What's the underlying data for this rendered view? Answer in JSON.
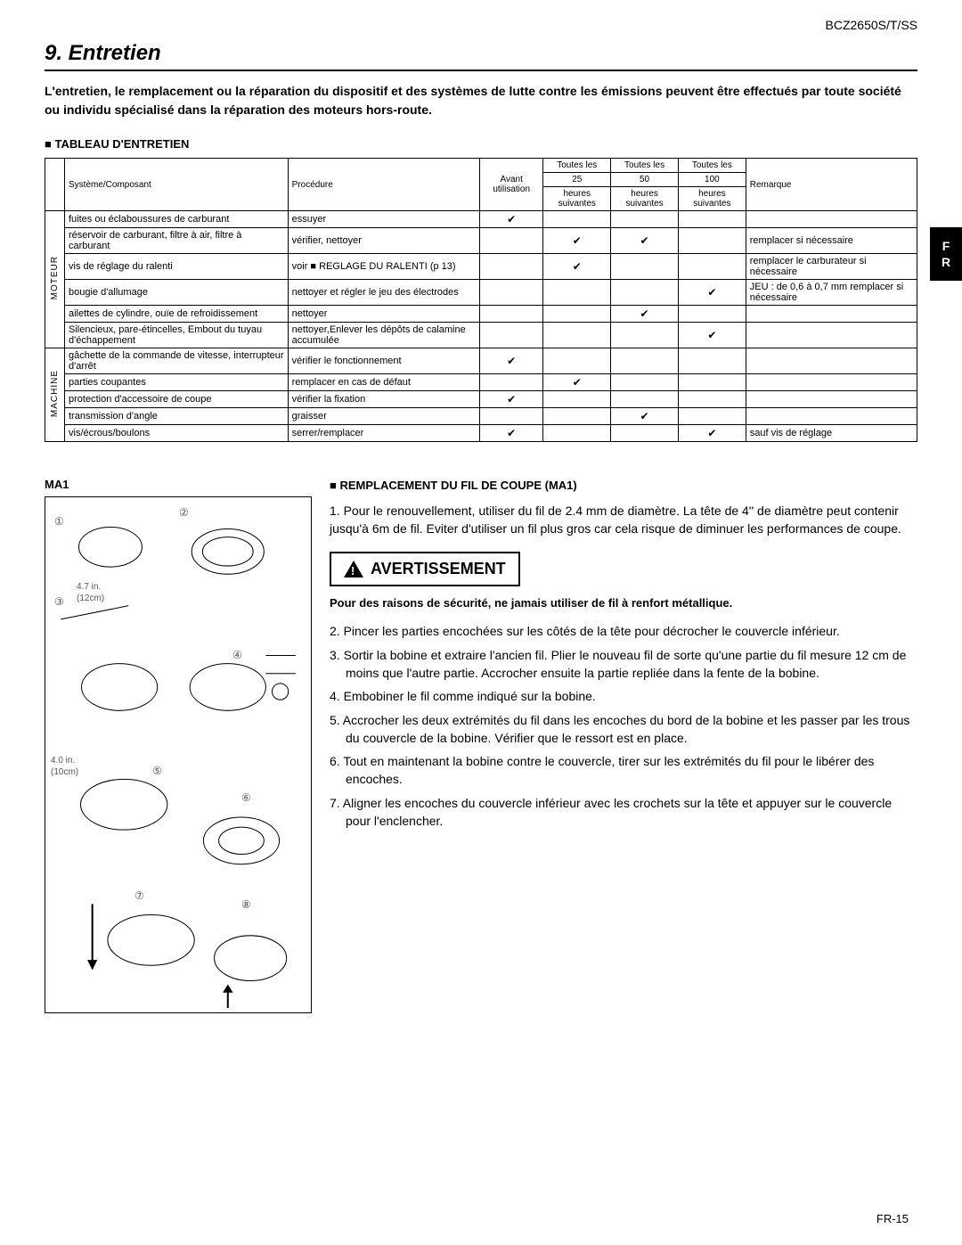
{
  "header": {
    "model": "BCZ2650S/T/SS"
  },
  "section": {
    "title": "9. Entretien"
  },
  "intro": "L'entretien, le remplacement ou la réparation du dispositif et des systèmes de lutte contre les émissions peuvent être effectués par toute société ou individu spécialisé dans la réparation des moteurs hors-route.",
  "table": {
    "heading": "TABLEAU D'ENTRETIEN",
    "columns": {
      "system": "Système/Composant",
      "procedure": "Procédure",
      "before": "Avant utilisation",
      "h25a": "Toutes les",
      "h25b": "25",
      "h25c": "heures suivantes",
      "h50a": "Toutes les",
      "h50b": "50",
      "h50c": "heures suivantes",
      "h100a": "Toutes les",
      "h100b": "100",
      "h100c": "heures suivantes",
      "remark": "Remarque"
    },
    "groups": [
      {
        "label": "MOTEUR",
        "rows": [
          {
            "system": "fuites ou éclaboussures de carburant",
            "procedure": "essuyer",
            "before": "✔",
            "h25": "",
            "h50": "",
            "h100": "",
            "remark": ""
          },
          {
            "system": "réservoir de carburant, filtre à air, filtre à carburant",
            "procedure": "vérifier, nettoyer",
            "before": "",
            "h25": "✔",
            "h50": "✔",
            "h100": "",
            "remark": "remplacer si nécessaire"
          },
          {
            "system": "vis de réglage du ralenti",
            "procedure": "voir ■ REGLAGE DU RALENTI (p 13)",
            "before": "",
            "h25": "✔",
            "h50": "",
            "h100": "",
            "remark": "remplacer le carburateur si nécessaire"
          },
          {
            "system": "bougie d'allumage",
            "procedure": "nettoyer et régler le jeu des électrodes",
            "before": "",
            "h25": "",
            "h50": "",
            "h100": "✔",
            "remark": "JEU : de 0,6 à 0,7 mm remplacer si nécessaire"
          },
          {
            "system": "ailettes de cylindre, ouïe de refroidissement",
            "procedure": "nettoyer",
            "before": "",
            "h25": "",
            "h50": "✔",
            "h100": "",
            "remark": ""
          },
          {
            "system": "Silencieux, pare-étincelles, Embout du tuyau d'échappement",
            "procedure": "nettoyer,Enlever les dépôts de calamine accumulée",
            "before": "",
            "h25": "",
            "h50": "",
            "h100": "✔",
            "remark": ""
          }
        ]
      },
      {
        "label": "MACHINE",
        "rows": [
          {
            "system": "gâchette de la commande de vitesse, interrupteur d'arrêt",
            "procedure": "vérifier le fonctionnement",
            "before": "✔",
            "h25": "",
            "h50": "",
            "h100": "",
            "remark": ""
          },
          {
            "system": "parties coupantes",
            "procedure": "remplacer en cas de défaut",
            "before": "",
            "h25": "✔",
            "h50": "",
            "h100": "",
            "remark": ""
          },
          {
            "system": "protection d'accessoire de coupe",
            "procedure": "vérifier la fixation",
            "before": "✔",
            "h25": "",
            "h50": "",
            "h100": "",
            "remark": ""
          },
          {
            "system": "transmission d'angle",
            "procedure": "graisser",
            "before": "",
            "h25": "",
            "h50": "✔",
            "h100": "",
            "remark": ""
          },
          {
            "system": "vis/écrous/boulons",
            "procedure": "serrer/remplacer",
            "before": "✔",
            "h25": "",
            "h50": "",
            "h100": "✔",
            "remark": "sauf vis de réglage"
          }
        ]
      }
    ]
  },
  "diagram": {
    "label": "MA1",
    "dims": {
      "d1": "4.7 in.",
      "d1b": "(12cm)",
      "d2": "4.0 in.",
      "d2b": "(10cm)"
    },
    "nums": [
      "①",
      "②",
      "③",
      "④",
      "⑤",
      "⑥",
      "⑦",
      "⑧"
    ]
  },
  "replacement": {
    "heading": "REMPLACEMENT DU FIL DE COUPE (MA1)",
    "step1": "1. Pour le renouvellement, utiliser du fil de 2.4 mm de diamètre. La tête de 4'' de diamètre peut contenir jusqu'à 6m de fil. Eviter d'utiliser un fil plus gros car cela risque de diminuer les performances de coupe.",
    "warning_label": "AVERTISSEMENT",
    "warning_text": "Pour des raisons de sécurité, ne jamais utiliser de fil à renfort métallique.",
    "steps_rest": [
      "2. Pincer les parties encochées sur les côtés de la tête pour décrocher le couvercle inférieur.",
      "3. Sortir la bobine et extraire l'ancien fil. Plier le nouveau fil de sorte qu'une partie du fil mesure 12 cm de moins que l'autre partie. Accrocher ensuite la partie repliée dans la fente de la bobine.",
      "4. Embobiner le fil comme indiqué sur la bobine.",
      "5. Accrocher les deux extrémités du fil dans les encoches du bord de la bobine et les passer par les trous du couvercle de la bobine. Vérifier que le ressort est en place.",
      "6. Tout en maintenant la bobine contre le couvercle, tirer sur les extrémités du fil pour le libérer des encoches.",
      "7. Aligner les encoches du couvercle inférieur avec les crochets sur la tête et appuyer sur le couvercle pour l'enclencher."
    ]
  },
  "sideTab": {
    "l1": "F",
    "l2": "R"
  },
  "pageNo": "FR-15"
}
